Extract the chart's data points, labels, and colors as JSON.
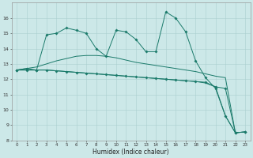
{
  "title": "",
  "xlabel": "Humidex (Indice chaleur)",
  "xlim": [
    -0.5,
    23.5
  ],
  "ylim": [
    8,
    17
  ],
  "yticks": [
    8,
    9,
    10,
    11,
    12,
    13,
    14,
    15,
    16
  ],
  "xticks": [
    0,
    1,
    2,
    3,
    4,
    5,
    6,
    7,
    8,
    9,
    10,
    11,
    12,
    13,
    14,
    15,
    16,
    17,
    18,
    19,
    20,
    21,
    22,
    23
  ],
  "background_color": "#cce8e8",
  "grid_color": "#aacfcf",
  "line_color": "#1a7a6a",
  "line1_x": [
    0,
    1,
    2,
    3,
    4,
    5,
    6,
    7,
    8,
    9,
    10,
    11,
    12,
    13,
    14,
    15,
    16,
    17,
    18,
    19,
    20,
    21,
    22,
    23
  ],
  "line1_y": [
    12.6,
    12.7,
    12.6,
    14.9,
    15.0,
    15.35,
    15.2,
    15.0,
    14.0,
    13.5,
    15.2,
    15.1,
    14.6,
    13.8,
    13.8,
    16.4,
    16.0,
    15.1,
    13.2,
    12.1,
    11.4,
    9.6,
    8.5,
    8.55
  ],
  "line2_x": [
    0,
    1,
    2,
    3,
    4,
    5,
    6,
    7,
    8,
    9,
    10,
    11,
    12,
    13,
    14,
    15,
    16,
    17,
    18,
    19,
    20,
    21,
    22,
    23
  ],
  "line2_y": [
    12.6,
    12.6,
    12.6,
    12.6,
    12.55,
    12.5,
    12.45,
    12.4,
    12.35,
    12.3,
    12.25,
    12.2,
    12.15,
    12.1,
    12.05,
    12.0,
    11.95,
    11.9,
    11.85,
    11.8,
    11.5,
    11.4,
    8.5,
    8.55
  ],
  "line3_x": [
    0,
    1,
    2,
    3,
    4,
    5,
    6,
    7,
    8,
    9,
    10,
    11,
    12,
    13,
    14,
    15,
    16,
    17,
    18,
    19,
    20,
    21,
    22,
    23
  ],
  "line3_y": [
    12.6,
    12.7,
    12.8,
    13.0,
    13.2,
    13.35,
    13.5,
    13.55,
    13.55,
    13.5,
    13.4,
    13.25,
    13.1,
    13.0,
    12.9,
    12.8,
    12.7,
    12.6,
    12.5,
    12.35,
    12.2,
    12.1,
    8.5,
    8.55
  ],
  "line4_x": [
    0,
    1,
    2,
    3,
    4,
    5,
    6,
    7,
    8,
    9,
    10,
    11,
    12,
    13,
    14,
    15,
    16,
    17,
    18,
    19,
    20,
    21,
    22,
    23
  ],
  "line4_y": [
    12.6,
    12.6,
    12.6,
    12.6,
    12.55,
    12.5,
    12.45,
    12.4,
    12.35,
    12.3,
    12.25,
    12.2,
    12.15,
    12.1,
    12.05,
    12.0,
    11.95,
    11.9,
    11.85,
    11.75,
    11.5,
    9.6,
    8.5,
    8.55
  ]
}
